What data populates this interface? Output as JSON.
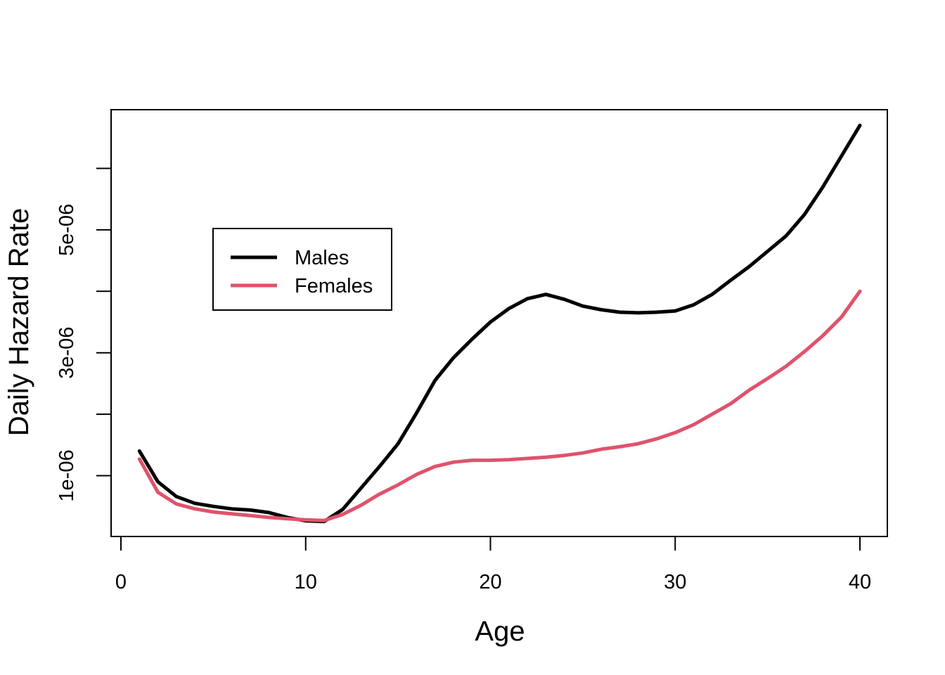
{
  "figure": {
    "background": "#ffffff",
    "frame_color": "#000000"
  },
  "chart_data": {
    "type": "line",
    "title": "",
    "xlabel": "Age",
    "ylabel": "Daily Hazard Rate",
    "grid": false,
    "xlim": [
      -0.6,
      41.5
    ],
    "ylim": [
      0,
      7e-06
    ],
    "x_ticks": [
      {
        "value": 0,
        "label": "0"
      },
      {
        "value": 10,
        "label": "10"
      },
      {
        "value": 20,
        "label": "20"
      },
      {
        "value": 30,
        "label": "30"
      },
      {
        "value": 40,
        "label": "40"
      }
    ],
    "y_ticks": [
      {
        "value": 1e-06,
        "label": "1e-06"
      },
      {
        "value": 2e-06,
        "label": ""
      },
      {
        "value": 3e-06,
        "label": "3e-06"
      },
      {
        "value": 4e-06,
        "label": ""
      },
      {
        "value": 5e-06,
        "label": "5e-06"
      },
      {
        "value": 6e-06,
        "label": ""
      }
    ],
    "legend": {
      "position": "top-left-inside",
      "entries": [
        "Males",
        "Females"
      ]
    },
    "x": [
      1,
      2,
      3,
      4,
      5,
      6,
      7,
      8,
      9,
      10,
      11,
      12,
      13,
      14,
      15,
      16,
      17,
      18,
      19,
      20,
      21,
      22,
      23,
      24,
      25,
      26,
      27,
      28,
      29,
      30,
      31,
      32,
      33,
      34,
      35,
      36,
      37,
      38,
      39,
      40
    ],
    "series": [
      {
        "name": "Males",
        "color": "#000000",
        "values": [
          1.4e-06,
          9e-07,
          6.6e-07,
          5.5e-07,
          5e-07,
          4.6e-07,
          4.4e-07,
          4e-07,
          3.2e-07,
          2.65e-07,
          2.55e-07,
          4.5e-07,
          8e-07,
          1.15e-06,
          1.52e-06,
          2.02e-06,
          2.55e-06,
          2.92e-06,
          3.22e-06,
          3.5e-06,
          3.72e-06,
          3.88e-06,
          3.95e-06,
          3.87e-06,
          3.76e-06,
          3.7e-06,
          3.66e-06,
          3.65e-06,
          3.66e-06,
          3.68e-06,
          3.78e-06,
          3.95e-06,
          4.18e-06,
          4.4e-06,
          4.65e-06,
          4.9e-06,
          5.25e-06,
          5.7e-06,
          6.2e-06,
          6.7e-06
        ]
      },
      {
        "name": "Females",
        "color": "#DF536B",
        "values": [
          1.27e-06,
          7.3e-07,
          5.4e-07,
          4.6e-07,
          4.1e-07,
          3.8e-07,
          3.5e-07,
          3.2e-07,
          3e-07,
          2.8e-07,
          2.7e-07,
          3.7e-07,
          5.2e-07,
          7e-07,
          8.5e-07,
          1.02e-06,
          1.15e-06,
          1.22e-06,
          1.25e-06,
          1.25e-06,
          1.26e-06,
          1.28e-06,
          1.3e-06,
          1.33e-06,
          1.37e-06,
          1.43e-06,
          1.47e-06,
          1.52e-06,
          1.6e-06,
          1.7e-06,
          1.83e-06,
          2e-06,
          2.17e-06,
          2.39e-06,
          2.58e-06,
          2.78e-06,
          3.02e-06,
          3.28e-06,
          3.58e-06,
          4e-06
        ]
      }
    ]
  }
}
